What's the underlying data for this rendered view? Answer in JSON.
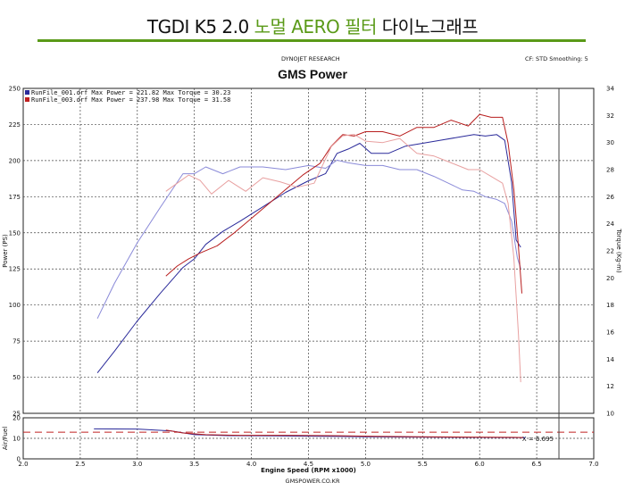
{
  "page": {
    "title_prefix": "TGDI  K5 2.0 ",
    "title_accent": "노멀 AERO 필터",
    "title_suffix": " 다이노그래프",
    "accent_color": "#5a9a18"
  },
  "header": {
    "dynojet": "DYNOJET RESEARCH",
    "cf_info": "CF: STD  Smoothing: 5",
    "chart_title": "GMS Power"
  },
  "footer": {
    "website": "GMSPOWER.CO.KR"
  },
  "cursor": {
    "x_value": 6.695,
    "label": "X = 6.695"
  },
  "chart_data": {
    "type": "line",
    "title": "GMS Power",
    "xlabel": "Engine Speed (RPM x1000)",
    "ylabel": "Power (PS)",
    "y2label": "Torque (Kg-m)",
    "sub_ylabel": "Air/Fuel",
    "xlim": [
      2.0,
      7.0
    ],
    "ylim": [
      25,
      250
    ],
    "y2lim": [
      10,
      34
    ],
    "sub_ylim": [
      0,
      20
    ],
    "x_ticks": [
      "2.0",
      "2.5",
      "3.0",
      "3.5",
      "4.0",
      "4.5",
      "5.0",
      "5.5",
      "6.0",
      "6.5",
      "7.0"
    ],
    "y_ticks": [
      "25",
      "50",
      "75",
      "100",
      "125",
      "150",
      "175",
      "200",
      "225",
      "250"
    ],
    "y2_ticks": [
      "10",
      "12",
      "14",
      "16",
      "18",
      "20",
      "22",
      "24",
      "26",
      "28",
      "30",
      "32",
      "34"
    ],
    "sub_y_ticks": [
      "0",
      "10",
      "20"
    ],
    "grid": true,
    "legend_position": "top-left",
    "legend": [
      {
        "text": "RunFile_001.drf Max Power = 221.82    Max Torque = 30.23",
        "color": "#2a2a9a"
      },
      {
        "text": "RunFile_003.drf Max Power = 237.98    Max Torque = 31.58",
        "color": "#c02020"
      }
    ],
    "afr_reference": 13.0,
    "series": [
      {
        "name": "RunFile_001.drf Power",
        "color": "#2a2a9a",
        "axis": "left",
        "x": [
          2.65,
          2.8,
          3.0,
          3.2,
          3.4,
          3.5,
          3.6,
          3.75,
          3.9,
          4.1,
          4.3,
          4.5,
          4.65,
          4.75,
          4.85,
          4.95,
          5.05,
          5.2,
          5.35,
          5.5,
          5.65,
          5.8,
          5.95,
          6.05,
          6.15,
          6.22,
          6.28,
          6.32,
          6.36
        ],
        "y": [
          53,
          68,
          89,
          108,
          126,
          132,
          142,
          151,
          158,
          168,
          178,
          186,
          191,
          205,
          208,
          212,
          205,
          205,
          210,
          212,
          214,
          216,
          218,
          217,
          218,
          214,
          185,
          145,
          140
        ]
      },
      {
        "name": "RunFile_001.drf Torque",
        "color": "#8a8ad8",
        "axis": "right",
        "x": [
          2.65,
          2.8,
          3.0,
          3.2,
          3.4,
          3.5,
          3.6,
          3.75,
          3.9,
          4.1,
          4.3,
          4.5,
          4.65,
          4.75,
          4.85,
          5.0,
          5.15,
          5.3,
          5.45,
          5.6,
          5.75,
          5.85,
          5.95,
          6.05,
          6.15,
          6.22,
          6.28,
          6.33,
          6.36
        ],
        "y": [
          17,
          19.6,
          22.6,
          25.2,
          27.7,
          27.7,
          28.2,
          27.7,
          28.2,
          28.2,
          28.0,
          28.3,
          28.1,
          28.7,
          28.5,
          28.3,
          28.3,
          28.0,
          28.0,
          27.5,
          26.9,
          26.5,
          26.4,
          26.0,
          25.8,
          25.5,
          24.2,
          21.5,
          20.7
        ]
      },
      {
        "name": "RunFile_003.drf Power",
        "color": "#b81e1e",
        "axis": "left",
        "x": [
          3.25,
          3.35,
          3.45,
          3.55,
          3.7,
          3.85,
          4.0,
          4.15,
          4.3,
          4.45,
          4.6,
          4.7,
          4.8,
          4.9,
          5.0,
          5.15,
          5.3,
          5.45,
          5.6,
          5.75,
          5.9,
          6.0,
          6.1,
          6.2,
          6.25,
          6.3,
          6.34,
          6.37
        ],
        "y": [
          120,
          127,
          132,
          136,
          141,
          150,
          160,
          170,
          180,
          190,
          198,
          210,
          218,
          217,
          220,
          220,
          217,
          223,
          223,
          228,
          224,
          232,
          230,
          230,
          212,
          180,
          140,
          108
        ]
      },
      {
        "name": "RunFile_003.drf Torque",
        "color": "#e8a0a0",
        "axis": "right",
        "x": [
          3.25,
          3.35,
          3.45,
          3.55,
          3.65,
          3.8,
          3.95,
          4.1,
          4.25,
          4.4,
          4.55,
          4.7,
          4.8,
          4.9,
          5.0,
          5.15,
          5.3,
          5.45,
          5.6,
          5.75,
          5.9,
          6.0,
          6.1,
          6.2,
          6.25,
          6.3,
          6.34,
          6.36
        ],
        "y": [
          26.4,
          27.0,
          27.6,
          27.2,
          26.2,
          27.2,
          26.4,
          27.4,
          27.1,
          26.7,
          27.0,
          29.7,
          30.5,
          30.6,
          30.1,
          30.0,
          30.3,
          29.2,
          29.0,
          28.5,
          28.0,
          28.0,
          27.5,
          27.0,
          25.5,
          21.5,
          15.8,
          12.3
        ]
      },
      {
        "name": "RunFile_001.drf Air/Fuel",
        "color": "#2a2a9a",
        "axis": "sub",
        "x": [
          2.62,
          3.0,
          3.3,
          3.5,
          3.8,
          4.2,
          4.6,
          5.0,
          5.4,
          5.8,
          6.2,
          6.4
        ],
        "y": [
          14.6,
          14.5,
          13.6,
          11.8,
          11.3,
          11.2,
          11.0,
          10.8,
          10.6,
          10.5,
          10.4,
          10.3
        ]
      },
      {
        "name": "RunFile_003.drf Air/Fuel",
        "color": "#b81e1e",
        "axis": "sub",
        "x": [
          3.25,
          3.4,
          3.6,
          3.9,
          4.3,
          4.7,
          5.1,
          5.5,
          5.9,
          6.3,
          6.38
        ],
        "y": [
          14.0,
          12.6,
          11.8,
          11.5,
          11.5,
          11.3,
          11.0,
          10.8,
          10.6,
          10.5,
          10.4
        ]
      }
    ]
  }
}
